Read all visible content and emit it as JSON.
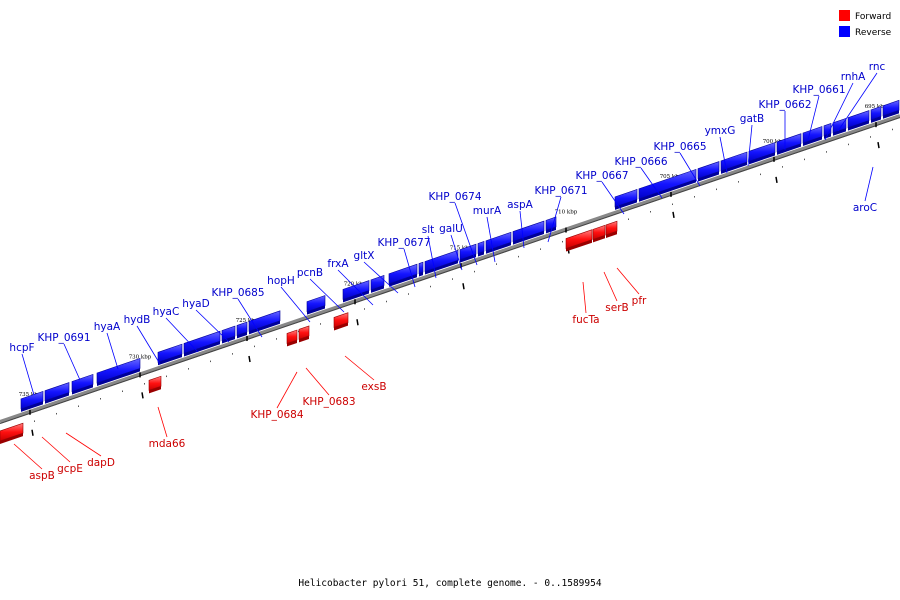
{
  "title": "Helicobacter pylori 51, complete genome. - 0..1589954",
  "legend": [
    {
      "label": "Forward",
      "color": "#ff0000"
    },
    {
      "label": "Reverse",
      "color": "#0000ff"
    }
  ],
  "colors": {
    "forward": "#ff0000",
    "reverse": "#0000ff",
    "label_forward": "#cc0000",
    "label_reverse": "#0000cc",
    "backbone": "#888888"
  },
  "ticks": [
    "735 kbp",
    "730 kbp",
    "725 kbp",
    "720 kbp",
    "715 kbp",
    "710 kbp",
    "705 kbp",
    "700 kbp",
    "695 kbp"
  ],
  "reverse_genes": [
    "hcpF",
    "KHP_0691",
    "hyaA",
    "hydB",
    "hyaC",
    "hyaD",
    "KHP_0685",
    "hopH",
    "pcnB",
    "frxA",
    "gltX",
    "KHP_0677",
    "slt",
    "galU",
    "KHP_0674",
    "murA",
    "aspA",
    "KHP_0671",
    "KHP_0667",
    "KHP_0666",
    "KHP_0665",
    "ymxG",
    "gatB",
    "KHP_0662",
    "KHP_0661",
    "rnhA",
    "rnc",
    "aroC"
  ],
  "forward_genes": [
    "aspB",
    "gcpE",
    "dapD",
    "mda66",
    "KHP_0684",
    "KHP_0683",
    "exsB",
    "fucTa",
    "serB",
    "pfr"
  ]
}
